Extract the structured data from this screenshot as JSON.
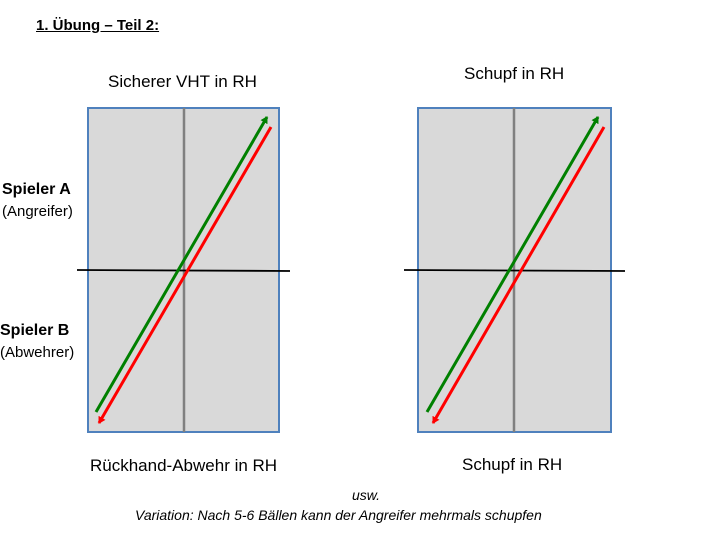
{
  "heading": "1. Übung – Teil 2:",
  "left_table": {
    "top_label": "Sicherer VHT in RH",
    "bottom_label": "Rückhand-Abwehr in RH"
  },
  "right_table": {
    "top_label": "Schupf in RH",
    "bottom_label": "Schupf in RH"
  },
  "players": {
    "a": {
      "name": "Spieler A",
      "role": "(Angreifer)"
    },
    "b": {
      "name": "Spieler B",
      "role": "(Abwehrer)"
    }
  },
  "footer": {
    "line1": "usw.",
    "line2": "Variation: Nach 5-6 Bällen kann der Angreifer mehrmals schupfen"
  },
  "colors": {
    "table_fill": "#d9d9d9",
    "table_border": "#4f81bd",
    "center_line": "#808080",
    "net": "#000000",
    "arrow_attack": "#008000",
    "arrow_defense": "#ff0000"
  }
}
